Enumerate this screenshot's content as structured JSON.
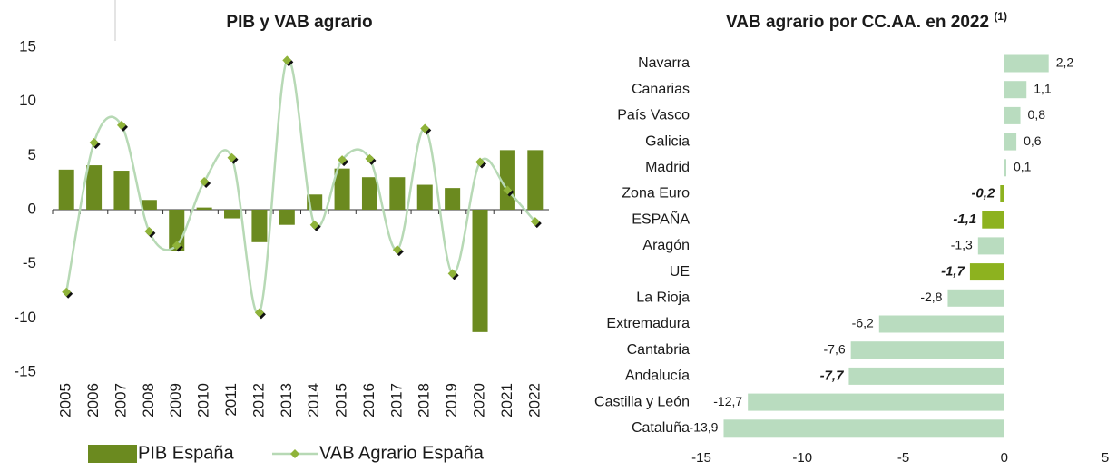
{
  "chart_data": [
    {
      "type": "bar",
      "title": "PIB y VAB agrario",
      "categories": [
        "2005",
        "2006",
        "2007",
        "2008",
        "2009",
        "2010",
        "2011",
        "2012",
        "2013",
        "2014",
        "2015",
        "2016",
        "2017",
        "2018",
        "2019",
        "2020",
        "2021",
        "2022"
      ],
      "series": [
        {
          "name": "PIB España",
          "type": "bar",
          "color": "#6b8a1f",
          "values": [
            3.7,
            4.1,
            3.6,
            0.9,
            -3.8,
            0.2,
            -0.8,
            -3.0,
            -1.4,
            1.4,
            3.8,
            3.0,
            3.0,
            2.3,
            2.0,
            -11.3,
            5.5,
            5.5
          ]
        },
        {
          "name": "VAB Agrario España",
          "type": "line",
          "color": "#b7d9b5",
          "marker_color": "#8fb339",
          "values": [
            -7.6,
            6.2,
            7.8,
            -2.0,
            -3.3,
            2.6,
            4.8,
            -9.5,
            13.8,
            -1.4,
            4.6,
            4.7,
            -3.7,
            7.5,
            -5.9,
            4.4,
            1.8,
            -1.1
          ]
        }
      ],
      "ylim": [
        -15,
        15
      ],
      "yticks": [
        -15,
        -10,
        -5,
        0,
        5,
        10,
        15
      ],
      "legend": "bottom"
    },
    {
      "type": "hbar",
      "title": "VAB agrario por CC.AA. en 2022",
      "title_note": "(1)",
      "categories": [
        "Navarra",
        "Canarias",
        "País Vasco",
        "Galicia",
        "Madrid",
        "Zona Euro",
        "ESPAÑA",
        "Aragón",
        "UE",
        "La Rioja",
        "Extremadura",
        "Cantabria",
        "Andalucía",
        "Castilla y León",
        "Cataluña"
      ],
      "values": [
        2.2,
        1.1,
        0.8,
        0.6,
        0.1,
        -0.2,
        -1.1,
        -1.3,
        -1.7,
        -2.8,
        -6.2,
        -7.6,
        -7.7,
        -12.7,
        -13.9
      ],
      "value_labels": [
        "2,2",
        "1,1",
        "0,8",
        "0,6",
        "0,1",
        "-0,2",
        "-1,1",
        "-1,3",
        "-1,7",
        "-2,8",
        "-6,2",
        "-7,6",
        "-7,7",
        "-12,7",
        "-13,9"
      ],
      "colors": [
        "#b9dcbf",
        "#b9dcbf",
        "#b9dcbf",
        "#b9dcbf",
        "#b9dcbf",
        "#8db21f",
        "#8db21f",
        "#b9dcbf",
        "#8db21f",
        "#b9dcbf",
        "#b9dcbf",
        "#b9dcbf",
        "#b9dcbf",
        "#b9dcbf",
        "#b9dcbf"
      ],
      "label_bold": [
        false,
        false,
        false,
        false,
        false,
        true,
        true,
        false,
        true,
        false,
        false,
        false,
        true,
        false,
        false
      ],
      "xlim": [
        -15,
        5
      ],
      "xticks": [
        -15,
        -10,
        -5,
        0,
        5
      ]
    }
  ]
}
